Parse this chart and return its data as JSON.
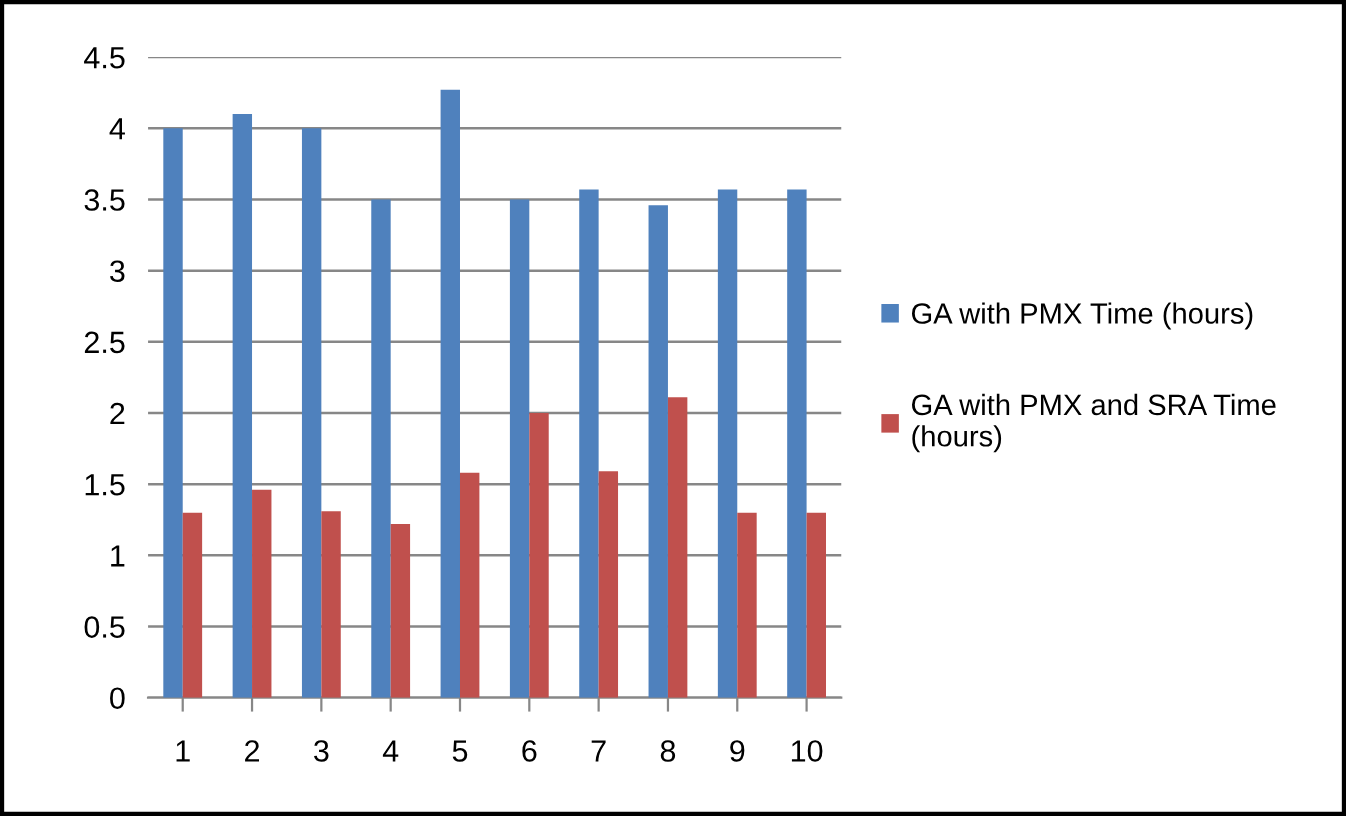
{
  "chart_data": {
    "type": "bar",
    "categories": [
      "1",
      "2",
      "3",
      "4",
      "5",
      "6",
      "7",
      "8",
      "9",
      "10"
    ],
    "series": [
      {
        "name": "GA with PMX Time (hours)",
        "color": "#4f81bd",
        "values": [
          4.0,
          4.1,
          4.0,
          3.5,
          4.27,
          3.5,
          3.57,
          3.46,
          3.57,
          3.57
        ]
      },
      {
        "name": "GA with PMX and SRA Time (hours)",
        "color": "#c0504d",
        "values": [
          1.3,
          1.46,
          1.31,
          1.22,
          1.58,
          2.0,
          1.59,
          2.11,
          1.3,
          1.3
        ]
      }
    ],
    "ylim": [
      0,
      4.5
    ],
    "yticks": [
      0,
      0.5,
      1,
      1.5,
      2,
      2.5,
      3,
      3.5,
      4,
      4.5
    ],
    "grid": "y",
    "legend": "right"
  }
}
